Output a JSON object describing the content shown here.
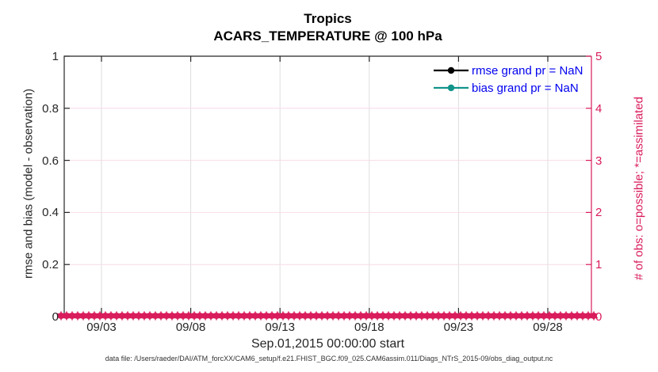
{
  "figure": {
    "title": "Tropics",
    "subtitle": "ACARS_TEMPERATURE @ 100 hPa",
    "caption": "data file: /Users/raeder/DAI/ATM_forcXX/CAM6_setup/f.e21.FHIST_BGC.f09_025.CAM6assim.011/Diags_NTrS_2015-09/obs_diag_output.nc"
  },
  "chart_data": {
    "type": "line",
    "title": "Tropics",
    "subtitle": "ACARS_TEMPERATURE @ 100 hPa",
    "xlabel": "Sep.01,2015 00:00:00 start",
    "x_axis": {
      "tick_labels": [
        "09/03",
        "09/08",
        "09/13",
        "09/18",
        "09/23",
        "09/28"
      ]
    },
    "left_axis": {
      "label": "rmse and bias (model - observation)",
      "lim": [
        0,
        1
      ],
      "ticks": [
        0,
        0.2,
        0.4,
        0.6,
        0.8,
        1
      ],
      "tick_labels": [
        "0",
        "0.2",
        "0.4",
        "0.6",
        "0.8",
        "1"
      ]
    },
    "right_axis": {
      "label": "# of obs: o=possible; *=assimilated",
      "lim": [
        0,
        5
      ],
      "ticks": [
        0,
        1,
        2,
        3,
        4,
        5
      ],
      "tick_labels": [
        "0",
        "1",
        "2",
        "3",
        "4",
        "5"
      ]
    },
    "grid": true,
    "legend": {
      "position": "top-right-inside",
      "entries": [
        {
          "label": "rmse grand pr = NaN",
          "color": "#000000",
          "marker": "filled-circle"
        },
        {
          "label": "bias grand pr = NaN",
          "color": "#12948a",
          "marker": "filled-circle"
        }
      ]
    },
    "series": [
      {
        "name": "rmse grand pr",
        "axis": "left",
        "values": "NaN",
        "plotted_points": 0
      },
      {
        "name": "bias grand pr",
        "axis": "left",
        "values": "NaN",
        "plotted_points": 0
      },
      {
        "name": "possible obs count",
        "axis": "right",
        "marker": "o",
        "constant_value": 0,
        "spans_full_x_range": true
      },
      {
        "name": "assimilated obs count",
        "axis": "right",
        "marker": "*",
        "constant_value": 0,
        "spans_full_x_range": true
      }
    ]
  },
  "colors": {
    "accent_pink": "#d91c5c",
    "grid_vertical": "#dedede",
    "grid_horizontal": "#f7dce8",
    "axis_dark": "#262626",
    "legend_text": "#0000ee",
    "teal": "#12948a",
    "background": "#ffffff"
  }
}
